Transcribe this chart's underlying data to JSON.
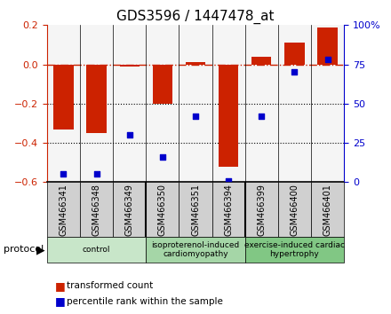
{
  "title": "GDS3596 / 1447478_at",
  "samples": [
    "GSM466341",
    "GSM466348",
    "GSM466349",
    "GSM466350",
    "GSM466351",
    "GSM466394",
    "GSM466399",
    "GSM466400",
    "GSM466401"
  ],
  "transformed_count": [
    -0.33,
    -0.35,
    -0.01,
    -0.2,
    0.01,
    -0.52,
    0.04,
    0.11,
    0.19
  ],
  "percentile_rank": [
    5,
    5,
    30,
    16,
    42,
    1,
    42,
    70,
    78
  ],
  "groups": [
    {
      "label": "control",
      "start": 0,
      "end": 3,
      "color": "#c8e6c9"
    },
    {
      "label": "isoproterenol-induced\ncardiomyopathy",
      "start": 3,
      "end": 6,
      "color": "#a5d6a7"
    },
    {
      "label": "exercise-induced cardiac\nhypertrophy",
      "start": 6,
      "end": 9,
      "color": "#81c784"
    }
  ],
  "ylim_left": [
    -0.6,
    0.2
  ],
  "ylim_right": [
    0,
    100
  ],
  "yticks_left": [
    -0.6,
    -0.4,
    -0.2,
    0.0,
    0.2
  ],
  "yticks_right": [
    0,
    25,
    50,
    75,
    100
  ],
  "bar_color": "#cc2200",
  "dot_color": "#0000cc",
  "grid_color": "#000000",
  "dashed_color": "#cc2200",
  "bg_color": "#f5f5f5",
  "sample_bg_color": "#d0d0d0",
  "legend_items": [
    {
      "label": "transformed count",
      "color": "#cc2200"
    },
    {
      "label": "percentile rank within the sample",
      "color": "#0000cc"
    }
  ]
}
